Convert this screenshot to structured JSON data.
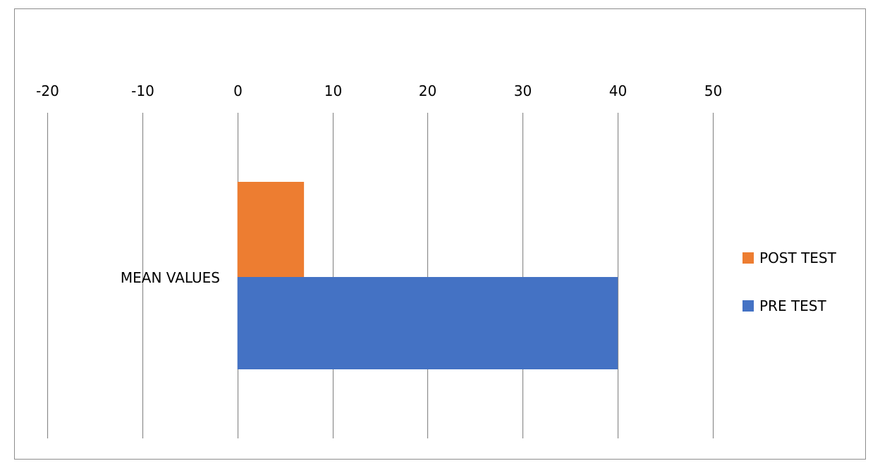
{
  "chart_data": {
    "type": "bar",
    "orientation": "horizontal",
    "categories": [
      "MEAN VALUES"
    ],
    "series": [
      {
        "name": "PRE TEST",
        "values": [
          40
        ],
        "color": "#4472C4"
      },
      {
        "name": "POST TEST",
        "values": [
          7
        ],
        "color": "#ED7D31"
      }
    ],
    "xlim": [
      -20,
      50
    ],
    "x_ticks": [
      -20,
      -10,
      0,
      10,
      20,
      30,
      40,
      50
    ],
    "x_axis_position": "top",
    "grid": true,
    "gridline_color": "#8c8c8c",
    "legend": {
      "placement": "right",
      "order": [
        "POST TEST",
        "PRE TEST"
      ]
    },
    "title": "",
    "xlabel": "",
    "ylabel": ""
  }
}
